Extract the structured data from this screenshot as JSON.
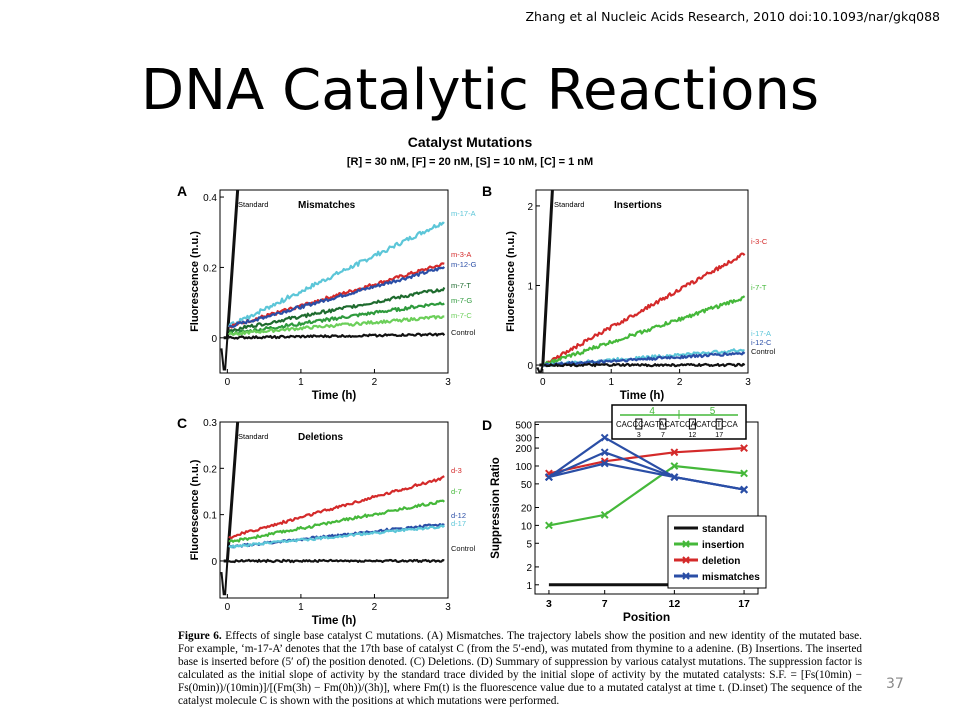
{
  "citation": "Zhang et al Nucleic Acids Research, 2010 doi:10.1093/nar/gkq088",
  "slide_title": "DNA Catalytic Reactions",
  "figure_title": "Catalyst Mutations",
  "figure_subtitle": "[R] = 30 nM, [F] = 20 nM, [S] = 10 nM, [C] = 1 nM",
  "caption": {
    "label": "Figure 6.",
    "text": "Effects of single base catalyst C mutations. (A) Mismatches. The trajectory labels show the position and new identity of the mutated base. For example, ‘m-17-A’ denotes that the 17th base of catalyst C (from the 5′-end), was mutated from thymine to a adenine. (B) Insertions. The inserted base is inserted before (5′ of) the position denoted. (C) Deletions. (D) Summary of suppression by various catalyst mutations. The suppression factor is calculated as the initial slope of activity by the standard trace divided by the initial slope of activity by the mutated catalysts: S.F. = [Fs(10min) − Fs(0min))/(10min)]/[(Fm(3h) − Fm(0h))/(3h)], where Fm(t) is the fluorescence value due to a mutated catalyst at time t. (D.inset) The sequence of the catalyst molecule C is shown with the positions at which mutations were performed."
  },
  "page_number": "37",
  "colors": {
    "black": "#111111",
    "red": "#d42a2a",
    "green": "#45b83a",
    "dark_green": "#1e6b2e",
    "mid_green": "#2e9a3c",
    "blue": "#2a4ea6",
    "light_blue": "#5bbcd6",
    "cyan": "#5cc6d8"
  },
  "chart_data": [
    {
      "panel": "A",
      "type": "line",
      "annotation": "Mismatches",
      "xlabel": "Time (h)",
      "ylabel": "Fluorescence (n.u.)",
      "xlim": [
        -0.1,
        3.0
      ],
      "ylim": [
        -0.1,
        0.42
      ],
      "xticks": [
        "0",
        "1",
        "2",
        "3"
      ],
      "xtick_values": [
        0,
        1,
        2,
        3
      ],
      "yticks": [
        "0",
        "0.2",
        "0.4"
      ],
      "ytick_values": [
        0,
        0.2,
        0.4
      ],
      "standard_label": "Standard",
      "series": [
        {
          "name": "m-17-A",
          "color": "#5cc6d8",
          "start": 0.03,
          "end": 0.33,
          "noise": 0.012
        },
        {
          "name": "m-3-A",
          "color": "#d42a2a",
          "start": 0.03,
          "end": 0.21,
          "noise": 0.009
        },
        {
          "name": "m-12-G",
          "color": "#2a4ea6",
          "start": 0.03,
          "end": 0.2,
          "noise": 0.009
        },
        {
          "name": "m-7-T",
          "color": "#1e6b2e",
          "start": 0.02,
          "end": 0.14,
          "noise": 0.009
        },
        {
          "name": "m-7-G",
          "color": "#2e9a3c",
          "start": 0.01,
          "end": 0.1,
          "noise": 0.009
        },
        {
          "name": "m-7-C",
          "color": "#6ccf5a",
          "start": 0.01,
          "end": 0.06,
          "noise": 0.008
        },
        {
          "name": "Control",
          "color": "#111111",
          "start": 0.0,
          "end": 0.01,
          "noise": 0.006
        }
      ]
    },
    {
      "panel": "B",
      "type": "line",
      "annotation": "Insertions",
      "xlabel": "Time (h)",
      "ylabel": "Fluorescence (n.u.)",
      "xlim": [
        -0.1,
        3.0
      ],
      "ylim": [
        -0.1,
        2.2
      ],
      "xticks": [
        "0",
        "1",
        "2",
        "3"
      ],
      "xtick_values": [
        0,
        1,
        2,
        3
      ],
      "yticks": [
        "0",
        "1",
        "2"
      ],
      "ytick_values": [
        0,
        1,
        2
      ],
      "standard_label": "Standard",
      "series": [
        {
          "name": "i-3-C",
          "color": "#d42a2a",
          "start": 0.0,
          "end": 1.4,
          "noise": 0.01
        },
        {
          "name": "i-7-T",
          "color": "#45b83a",
          "start": 0.0,
          "end": 0.85,
          "noise": 0.01
        },
        {
          "name": "i-17-A",
          "color": "#5cc6d8",
          "start": 0.0,
          "end": 0.19,
          "noise": 0.008
        },
        {
          "name": "i-12-C",
          "color": "#2a4ea6",
          "start": 0.0,
          "end": 0.15,
          "noise": 0.008
        },
        {
          "name": "Control",
          "color": "#111111",
          "start": 0.0,
          "end": 0.0,
          "noise": 0.006
        }
      ]
    },
    {
      "panel": "C",
      "type": "line",
      "annotation": "Deletions",
      "xlabel": "Time (h)",
      "ylabel": "Fluorescence (n.u.)",
      "xlim": [
        -0.1,
        3.0
      ],
      "ylim": [
        -0.08,
        0.3
      ],
      "xticks": [
        "0",
        "1",
        "2",
        "3"
      ],
      "xtick_values": [
        0,
        1,
        2,
        3
      ],
      "yticks": [
        "0",
        "0.1",
        "0.2",
        "0.3"
      ],
      "ytick_values": [
        0,
        0.1,
        0.2,
        0.3
      ],
      "standard_label": "Standard",
      "series": [
        {
          "name": "d-3",
          "color": "#d42a2a",
          "start": 0.05,
          "end": 0.18,
          "noise": 0.008
        },
        {
          "name": "d-7",
          "color": "#45b83a",
          "start": 0.04,
          "end": 0.13,
          "noise": 0.008
        },
        {
          "name": "d-12",
          "color": "#2a4ea6",
          "start": 0.03,
          "end": 0.08,
          "noise": 0.007
        },
        {
          "name": "d-17",
          "color": "#5cc6d8",
          "start": 0.03,
          "end": 0.075,
          "noise": 0.007
        },
        {
          "name": "Control",
          "color": "#111111",
          "start": 0.0,
          "end": 0.0,
          "noise": 0.006
        }
      ]
    },
    {
      "panel": "D",
      "type": "line",
      "xlabel": "Position",
      "ylabel": "Suppression Ratio",
      "x": [
        3,
        7,
        12,
        17
      ],
      "xlim": [
        2,
        18
      ],
      "xticks": [
        "3",
        "7",
        "12",
        "17"
      ],
      "ylim": [
        0.7,
        550
      ],
      "yscale": "log",
      "yticks": [
        "1",
        "2",
        "5",
        "10",
        "20",
        "50",
        "100",
        "200",
        "300",
        "500"
      ],
      "ytick_values": [
        1,
        2,
        5,
        10,
        20,
        50,
        100,
        200,
        300,
        500
      ],
      "legend_position": "bottom-right",
      "series": [
        {
          "name": "standard",
          "color": "#111111",
          "values": [
            1,
            1,
            1,
            1
          ]
        },
        {
          "name": "insertion",
          "color": "#45b83a",
          "values": [
            10,
            15,
            100,
            75
          ]
        },
        {
          "name": "deletion",
          "color": "#d42a2a",
          "values": [
            75,
            120,
            170,
            200
          ]
        },
        {
          "name": "mismatches",
          "color": "#2a4ea6",
          "lines": [
            [
              65,
              300,
              65,
              40
            ],
            [
              65,
              170,
              65,
              40
            ],
            [
              65,
              110,
              65,
              40
            ]
          ]
        }
      ],
      "inset": {
        "sequence": "CACCCAGTACATCCACATCTCCA",
        "markers": [
          "3",
          "7",
          "12",
          "17"
        ],
        "domain_labels": [
          "4",
          "5"
        ]
      }
    }
  ]
}
